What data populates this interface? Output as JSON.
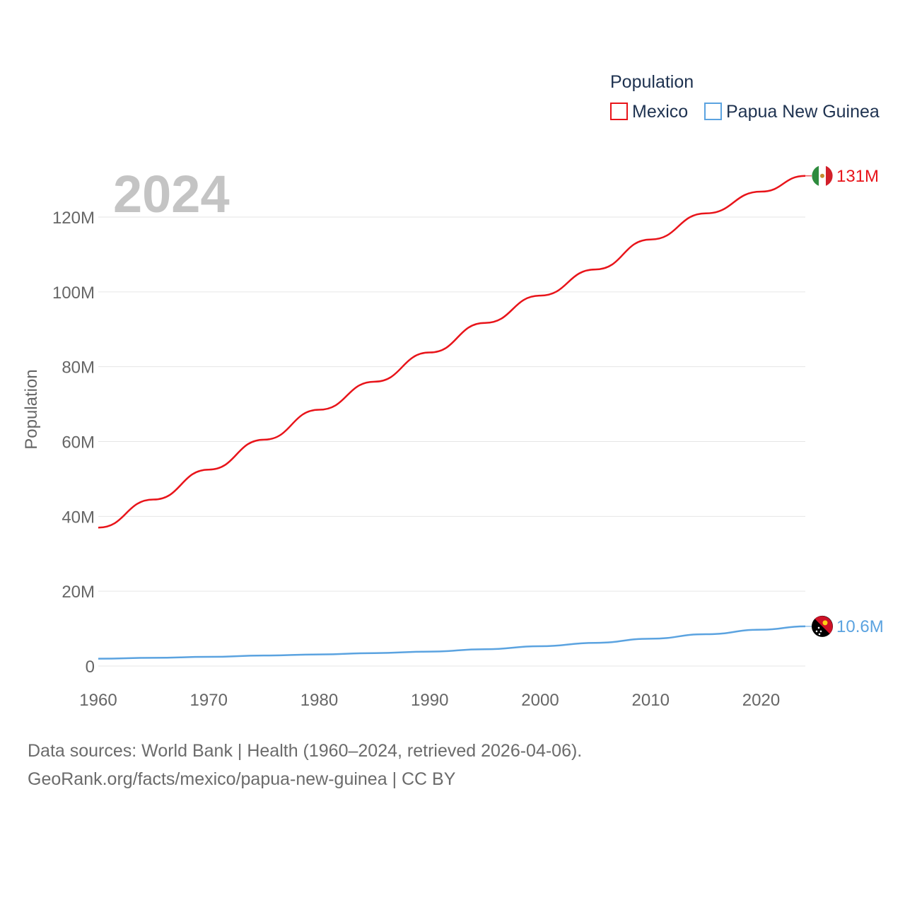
{
  "chart_data": {
    "type": "line",
    "title": "",
    "year_label": "2024",
    "xlabel": "",
    "ylabel": "Population",
    "xlim": [
      1960,
      2024
    ],
    "ylim": [
      0,
      130000000
    ],
    "grid": true,
    "x_ticks": [
      1960,
      1970,
      1980,
      1990,
      2000,
      2010,
      2020
    ],
    "x_tick_labels": [
      "1960",
      "1970",
      "1980",
      "1990",
      "2000",
      "2010",
      "2020"
    ],
    "y_ticks": [
      0,
      20000000,
      40000000,
      60000000,
      80000000,
      100000000,
      120000000
    ],
    "y_tick_labels": [
      "0",
      "20M",
      "40M",
      "60M",
      "80M",
      "100M",
      "120M"
    ],
    "legend": {
      "title": "Population",
      "position": "top-right"
    },
    "series": [
      {
        "name": "Mexico",
        "color": "#e8141a",
        "end_label": "131M",
        "flag_icon": "mexico-flag-icon",
        "x": [
          1960,
          1965,
          1970,
          1975,
          1980,
          1985,
          1990,
          1995,
          2000,
          2005,
          2010,
          2015,
          2020,
          2024
        ],
        "values": [
          37000000,
          44500000,
          52500000,
          60500000,
          68500000,
          76000000,
          83800000,
          91700000,
          99000000,
          106000000,
          114000000,
          121000000,
          126800000,
          131000000
        ]
      },
      {
        "name": "Papua New Guinea",
        "color": "#5ba3e0",
        "end_label": "10.6M",
        "flag_icon": "papua-new-guinea-flag-icon",
        "x": [
          1960,
          1965,
          1970,
          1975,
          1980,
          1985,
          1990,
          1995,
          2000,
          2005,
          2010,
          2015,
          2020,
          2024
        ],
        "values": [
          1970000,
          2200000,
          2450000,
          2800000,
          3100000,
          3450000,
          3850000,
          4500000,
          5300000,
          6200000,
          7300000,
          8500000,
          9700000,
          10600000
        ]
      }
    ]
  },
  "footer": {
    "line1": "Data sources: World Bank | Health (1960–2024, retrieved 2026-04-06).",
    "line2": "GeoRank.org/facts/mexico/papua-new-guinea | CC BY"
  }
}
